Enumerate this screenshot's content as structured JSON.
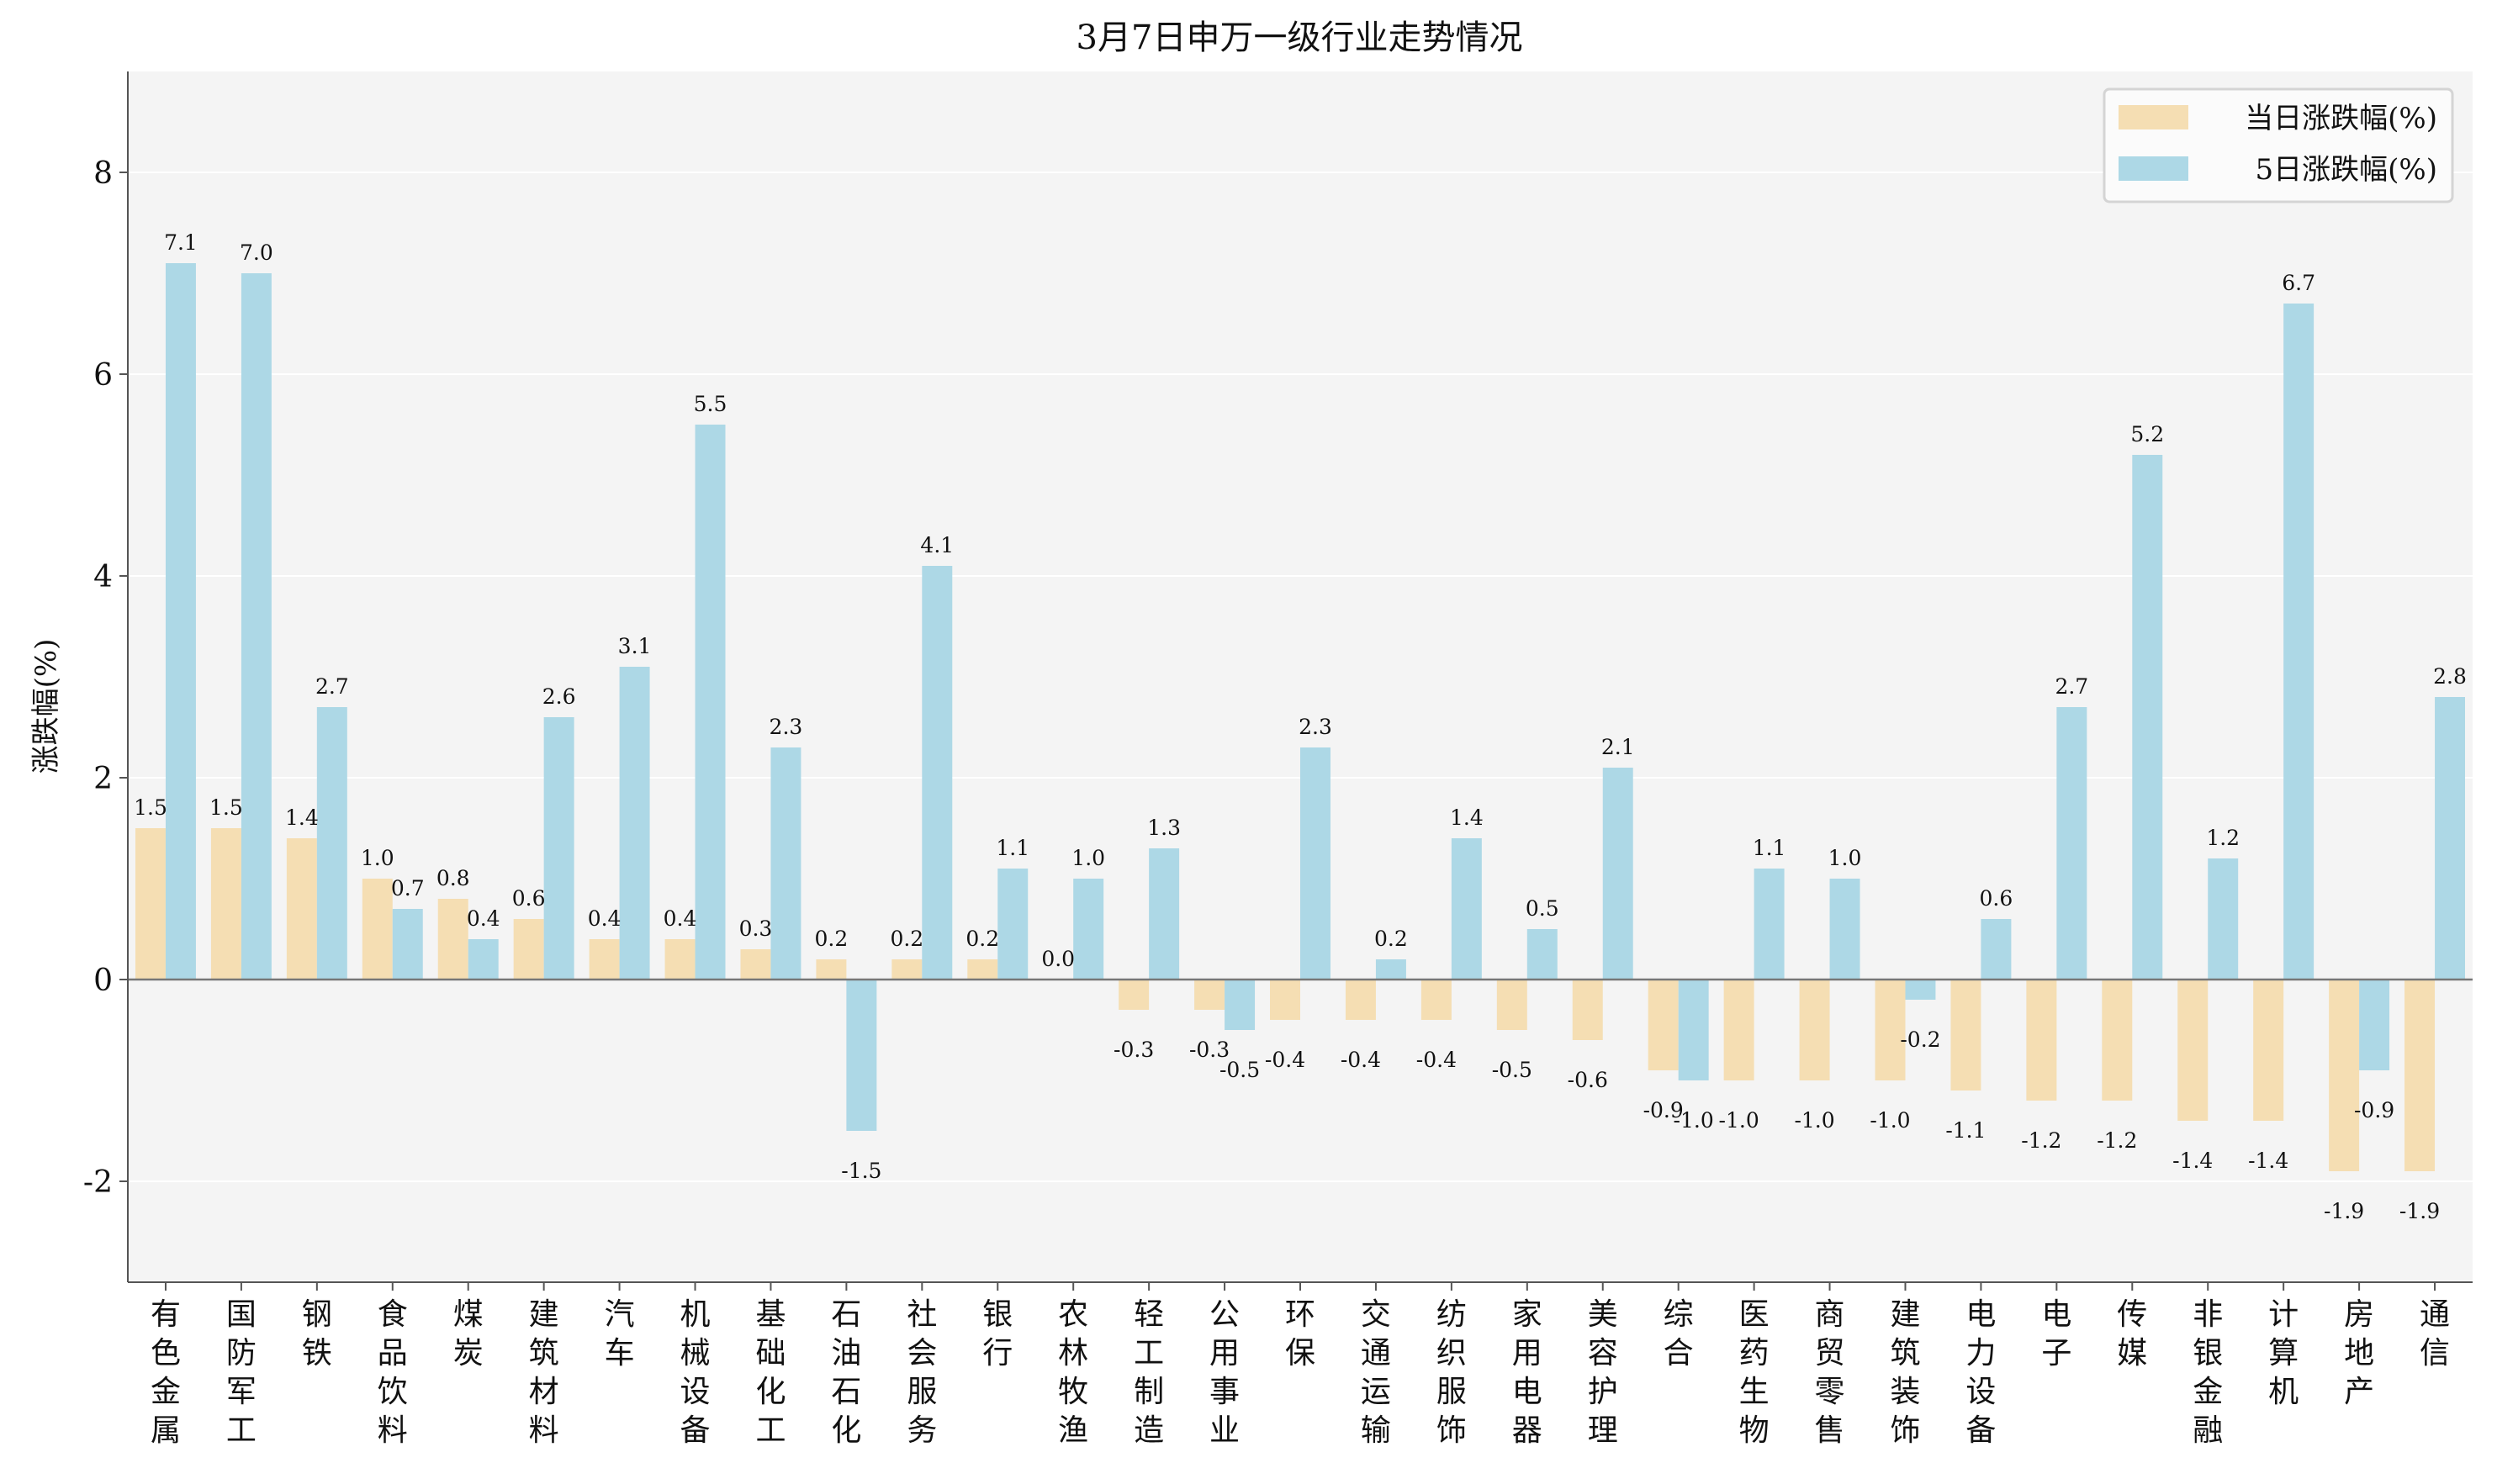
{
  "chart_data": {
    "type": "bar",
    "title": "3月7日申万一级行业走势情况",
    "xlabel": "",
    "ylabel": "涨跌幅(%)",
    "ylim": [
      -3,
      9
    ],
    "yticks": [
      -2,
      0,
      2,
      4,
      6,
      8
    ],
    "grid": true,
    "legend_position": "top-right",
    "categories": [
      "有色金属",
      "国防军工",
      "钢铁",
      "食品饮料",
      "煤炭",
      "建筑材料",
      "汽车",
      "机械设备",
      "基础化工",
      "石油石化",
      "社会服务",
      "银行",
      "农林牧渔",
      "轻工制造",
      "公用事业",
      "环保",
      "交通运输",
      "纺织服饰",
      "家用电器",
      "美容护理",
      "综合",
      "医药生物",
      "商贸零售",
      "建筑装饰",
      "电力设备",
      "电子",
      "传媒",
      "非银金融",
      "计算机",
      "房地产",
      "通信"
    ],
    "series": [
      {
        "name": "当日涨跌幅(%)",
        "color": "#f5deb3",
        "values": [
          1.5,
          1.5,
          1.4,
          1.0,
          0.8,
          0.6,
          0.4,
          0.4,
          0.3,
          0.2,
          0.2,
          0.2,
          0.0,
          -0.3,
          -0.3,
          -0.4,
          -0.4,
          -0.4,
          -0.5,
          -0.6,
          -0.9,
          -1.0,
          -1.0,
          -1.0,
          -1.1,
          -1.2,
          -1.2,
          -1.4,
          -1.4,
          -1.9,
          -1.9
        ]
      },
      {
        "name": "5日涨跌幅(%)",
        "color": "#add8e6",
        "values": [
          7.1,
          7.0,
          2.7,
          0.7,
          0.4,
          2.6,
          3.1,
          5.5,
          2.3,
          -1.5,
          4.1,
          1.1,
          1.0,
          1.3,
          -0.5,
          2.3,
          0.2,
          1.4,
          0.5,
          2.1,
          -1.0,
          1.1,
          1.0,
          -0.2,
          0.6,
          2.7,
          5.2,
          1.2,
          6.7,
          -0.9,
          2.8
        ]
      }
    ],
    "plot_background": "#f4f4f4",
    "grid_color": "#ffffff"
  }
}
